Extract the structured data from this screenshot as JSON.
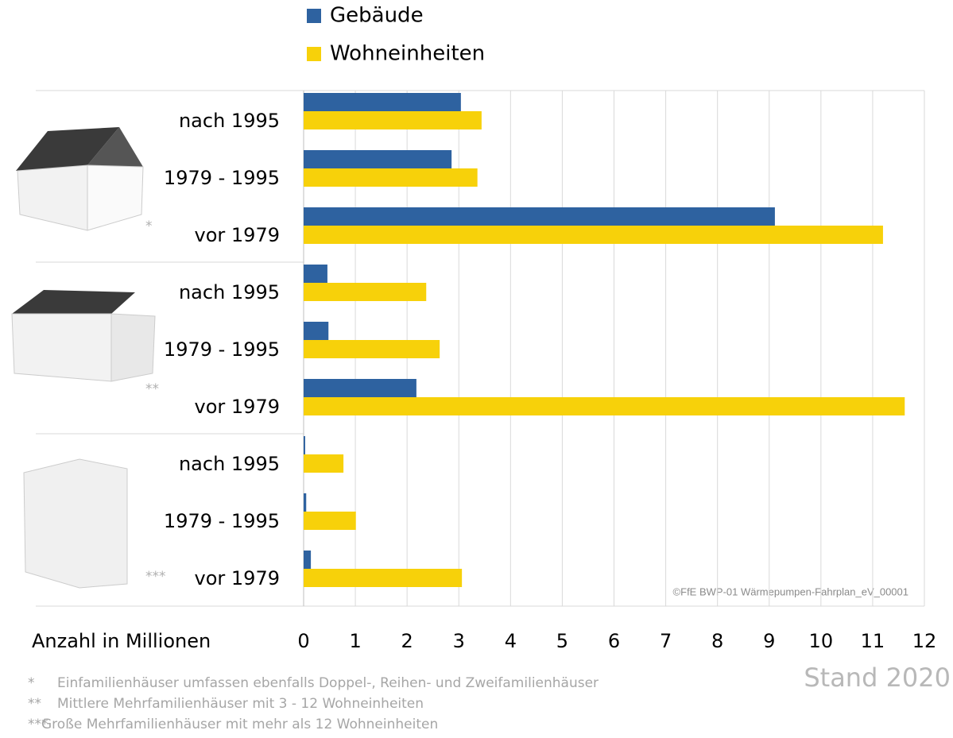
{
  "chart_data": {
    "type": "bar",
    "orientation": "horizontal",
    "categories": [
      "nach 1995",
      "1979 - 1995",
      "vor 1979",
      "nach 1995",
      "1979 - 1995",
      "vor 1979",
      "nach 1995",
      "1979 - 1995",
      "vor 1979"
    ],
    "series": [
      {
        "name": "Gebäude",
        "color": "#2e62a0",
        "values": [
          3.04,
          2.86,
          9.11,
          0.46,
          0.48,
          2.18,
          0.03,
          0.05,
          0.14
        ]
      },
      {
        "name": "Wohneinheiten",
        "color": "#f7d10a",
        "values": [
          3.44,
          3.36,
          11.2,
          2.37,
          2.63,
          11.62,
          0.77,
          1.01,
          3.06
        ]
      }
    ],
    "xlim": [
      0,
      12
    ],
    "xticks": [
      0,
      1,
      2,
      3,
      4,
      5,
      6,
      7,
      8,
      9,
      10,
      11,
      12
    ],
    "grid": true,
    "x_label": "Anzahl in Millionen",
    "group_marks": [
      "*",
      "**",
      "***"
    ],
    "copyright": "©FfE BWP-01 Wärmepumpen-Fahrplan_eV_00001",
    "stand": "Stand 2020",
    "footnotes": [
      {
        "mark": "*",
        "text": "Einfamilienhäuser umfassen ebenfalls Doppel-, Reihen- und Zweifamilienhäuser"
      },
      {
        "mark": "**",
        "text": "Mittlere Mehrfamilienhäuser mit 3 - 12 Wohneinheiten"
      },
      {
        "mark": "***",
        "text": "Große Mehrfamilienhäuser mit mehr als 12 Wohneinheiten"
      }
    ]
  }
}
